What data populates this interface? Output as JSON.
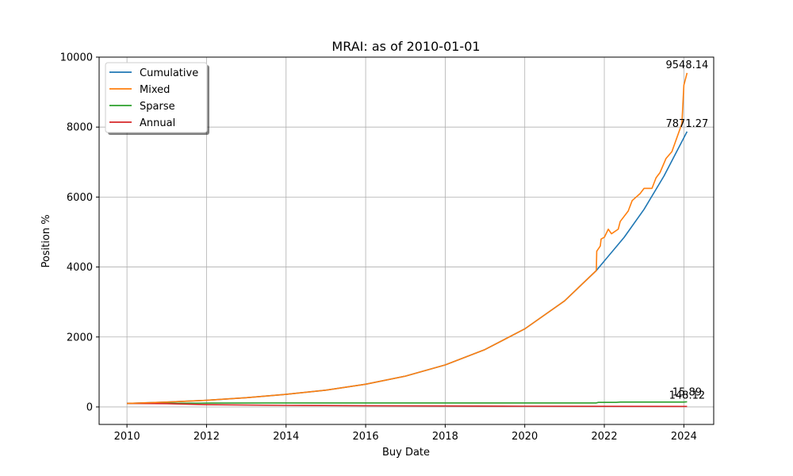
{
  "chart_data": {
    "type": "line",
    "title": "MRAI: as of 2010-01-01",
    "xlabel": "Buy Date",
    "ylabel": "Position %",
    "xlim": [
      2009.3,
      2024.75
    ],
    "ylim": [
      -500,
      10000
    ],
    "xticks": [
      2010,
      2012,
      2014,
      2016,
      2018,
      2020,
      2022,
      2024
    ],
    "xtick_labels": [
      "2010",
      "2012",
      "2014",
      "2016",
      "2018",
      "2020",
      "2022",
      "2024"
    ],
    "yticks": [
      0,
      2000,
      4000,
      6000,
      8000,
      10000
    ],
    "ytick_labels": [
      "0",
      "2000",
      "4000",
      "6000",
      "8000",
      "10000"
    ],
    "grid": true,
    "legend_placement": "top-left",
    "series": [
      {
        "name": "Cumulative",
        "color": "#1f77b4",
        "x": [
          2010.0,
          2011.0,
          2012.0,
          2013.0,
          2014.0,
          2015.0,
          2016.0,
          2017.0,
          2018.0,
          2019.0,
          2020.0,
          2021.0,
          2021.8,
          2022.5,
          2023.0,
          2023.5,
          2024.08
        ],
        "y": [
          100,
          140,
          190,
          265,
          360,
          480,
          650,
          880,
          1200,
          1640,
          2230,
          3030,
          3900,
          4850,
          5650,
          6600,
          7871.27
        ]
      },
      {
        "name": "Mixed",
        "color": "#ff7f0e",
        "x": [
          2010.0,
          2011.0,
          2012.0,
          2013.0,
          2014.0,
          2015.0,
          2016.0,
          2017.0,
          2018.0,
          2019.0,
          2020.0,
          2021.0,
          2021.8,
          2021.81,
          2021.9,
          2021.92,
          2022.0,
          2022.1,
          2022.18,
          2022.35,
          2022.4,
          2022.6,
          2022.7,
          2022.9,
          2023.0,
          2023.2,
          2023.3,
          2023.4,
          2023.55,
          2023.7,
          2023.95,
          2024.0,
          2024.08
        ],
        "y": [
          100,
          140,
          190,
          265,
          360,
          480,
          650,
          880,
          1200,
          1640,
          2230,
          3030,
          3900,
          4450,
          4600,
          4800,
          4850,
          5080,
          4950,
          5080,
          5300,
          5600,
          5900,
          6100,
          6250,
          6250,
          6550,
          6700,
          7100,
          7300,
          8100,
          9200,
          9548.14
        ]
      },
      {
        "name": "Sparse",
        "color": "#2ca02c",
        "x": [
          2010.0,
          2012.0,
          2014.0,
          2016.0,
          2018.0,
          2020.0,
          2021.8,
          2021.85,
          2022.3,
          2022.4,
          2023.0,
          2024.0,
          2024.08
        ],
        "y": [
          100,
          110,
          115,
          115,
          115,
          115,
          115,
          130,
          130,
          140,
          140,
          140,
          148.12
        ]
      },
      {
        "name": "Annual",
        "color": "#d62728",
        "x": [
          2010.0,
          2011.0,
          2012.0,
          2014.0,
          2016.0,
          2018.0,
          2020.0,
          2022.0,
          2024.08
        ],
        "y": [
          100,
          95,
          65,
          45,
          35,
          28,
          22,
          18,
          15.89
        ]
      }
    ],
    "annotations": [
      {
        "text": "9548.14",
        "x": 2024.08,
        "y": 9548.14
      },
      {
        "text": "7871.27",
        "x": 2024.08,
        "y": 7871.27
      },
      {
        "text": "148.12",
        "x": 2024.08,
        "y": 148.12
      },
      {
        "text": "15.89",
        "x": 2024.08,
        "y": 15.89
      }
    ]
  }
}
